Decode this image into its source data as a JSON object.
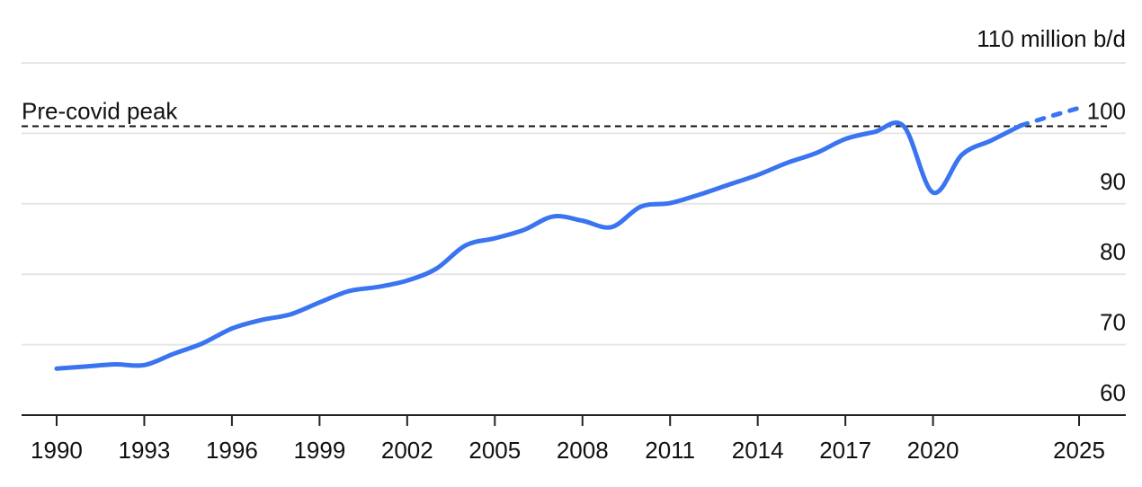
{
  "chart_data": {
    "type": "line",
    "title": "",
    "xlabel": "",
    "ylabel": "",
    "unit_label": "110 million b/d",
    "xlim": [
      1988.8,
      2026.6
    ],
    "ylim": [
      60,
      110
    ],
    "x_ticks": [
      {
        "value": 1990,
        "label": "1990"
      },
      {
        "value": 1993,
        "label": "1993"
      },
      {
        "value": 1996,
        "label": "1996"
      },
      {
        "value": 1999,
        "label": "1999"
      },
      {
        "value": 2002,
        "label": "2002"
      },
      {
        "value": 2005,
        "label": "2005"
      },
      {
        "value": 2008,
        "label": "2008"
      },
      {
        "value": 2011,
        "label": "2011"
      },
      {
        "value": 2014,
        "label": "2014"
      },
      {
        "value": 2017,
        "label": "2017"
      },
      {
        "value": 2020,
        "label": "2020"
      },
      {
        "value": 2025,
        "label": "2025"
      }
    ],
    "y_ticks": [
      {
        "value": 100,
        "label": "100"
      },
      {
        "value": 90,
        "label": "90"
      },
      {
        "value": 80,
        "label": "80"
      },
      {
        "value": 70,
        "label": "70"
      },
      {
        "value": 60,
        "label": "60"
      }
    ],
    "grid": true,
    "reference_line": {
      "label": "Pre-covid peak",
      "value": 101
    },
    "series": [
      {
        "color": "#3a74f0",
        "style": "solid",
        "points": [
          [
            1990,
            66.6
          ],
          [
            1991,
            66.9
          ],
          [
            1992,
            67.2
          ],
          [
            1993,
            67.1
          ],
          [
            1994,
            68.7
          ],
          [
            1995,
            70.2
          ],
          [
            1996,
            72.3
          ],
          [
            1997,
            73.5
          ],
          [
            1998,
            74.3
          ],
          [
            1999,
            76.0
          ],
          [
            2000,
            77.6
          ],
          [
            2001,
            78.2
          ],
          [
            2002,
            79.1
          ],
          [
            2003,
            80.8
          ],
          [
            2004,
            84.1
          ],
          [
            2005,
            85.1
          ],
          [
            2006,
            86.3
          ],
          [
            2007,
            88.2
          ],
          [
            2008,
            87.6
          ],
          [
            2009,
            86.7
          ],
          [
            2010,
            89.6
          ],
          [
            2011,
            90.1
          ],
          [
            2012,
            91.3
          ],
          [
            2013,
            92.7
          ],
          [
            2014,
            94.1
          ],
          [
            2015,
            95.8
          ],
          [
            2016,
            97.2
          ],
          [
            2017,
            99.2
          ],
          [
            2018,
            100.2
          ],
          [
            2019,
            101.0
          ],
          [
            2020,
            91.6
          ],
          [
            2021,
            97.0
          ],
          [
            2022,
            99.0
          ],
          [
            2023,
            101.1
          ]
        ]
      },
      {
        "color": "#3a74f0",
        "style": "dashed",
        "points": [
          [
            2023,
            101.1
          ],
          [
            2024,
            102.4
          ],
          [
            2025,
            103.6
          ]
        ]
      }
    ]
  }
}
